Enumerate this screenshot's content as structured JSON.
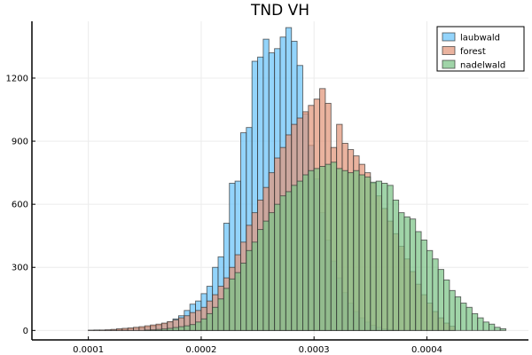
{
  "chart_data": {
    "type": "bar",
    "title": "TND VH",
    "xlabel": "",
    "ylabel": "",
    "xlim": [
      5e-05,
      0.00049
    ],
    "ylim": [
      -45,
      1470
    ],
    "x_ticks": [
      0.0001,
      0.0002,
      0.0003,
      0.0004
    ],
    "x_tick_labels": [
      "0.0001",
      "0.0002",
      "0.0003",
      "0.0004"
    ],
    "y_ticks": [
      0,
      300,
      600,
      900,
      1200
    ],
    "y_tick_labels": [
      "0",
      "300",
      "600",
      "900",
      "1200"
    ],
    "grid": true,
    "legend_position": "top-right",
    "bin_width": 5e-06,
    "series": [
      {
        "name": "laubwald",
        "color": "#6ac4fa",
        "x": [
          0.0001,
          0.000105,
          0.00011,
          0.000115,
          0.00012,
          0.000125,
          0.00013,
          0.000135,
          0.00014,
          0.000145,
          0.00015,
          0.000155,
          0.00016,
          0.000165,
          0.00017,
          0.000175,
          0.00018,
          0.000185,
          0.00019,
          0.000195,
          0.0002,
          0.000205,
          0.00021,
          0.000215,
          0.00022,
          0.000225,
          0.00023,
          0.000235,
          0.00024,
          0.000245,
          0.00025,
          0.000255,
          0.00026,
          0.000265,
          0.00027,
          0.000275,
          0.00028,
          0.000285,
          0.00029,
          0.000295,
          0.0003,
          0.000305,
          0.00031,
          0.000315,
          0.00032,
          0.000325,
          0.00033,
          0.000335,
          0.00034,
          0.000345,
          0.00035,
          0.000355,
          0.00036,
          0.000365,
          0.00037
        ],
        "values": [
          1,
          2,
          1,
          2,
          3,
          4,
          5,
          7,
          10,
          12,
          15,
          20,
          25,
          32,
          40,
          55,
          70,
          95,
          125,
          140,
          175,
          210,
          300,
          350,
          510,
          700,
          710,
          940,
          965,
          1280,
          1300,
          1385,
          1320,
          1340,
          1395,
          1440,
          1375,
          1260,
          1030,
          880,
          720,
          560,
          430,
          330,
          250,
          180,
          130,
          90,
          60,
          40,
          25,
          15,
          8,
          5,
          2
        ]
      },
      {
        "name": "forest",
        "color": "#e2967a",
        "x": [
          0.0001,
          0.000105,
          0.00011,
          0.000115,
          0.00012,
          0.000125,
          0.00013,
          0.000135,
          0.00014,
          0.000145,
          0.00015,
          0.000155,
          0.00016,
          0.000165,
          0.00017,
          0.000175,
          0.00018,
          0.000185,
          0.00019,
          0.000195,
          0.0002,
          0.000205,
          0.00021,
          0.000215,
          0.00022,
          0.000225,
          0.00023,
          0.000235,
          0.00024,
          0.000245,
          0.00025,
          0.000255,
          0.00026,
          0.000265,
          0.00027,
          0.000275,
          0.00028,
          0.000285,
          0.00029,
          0.000295,
          0.0003,
          0.000305,
          0.00031,
          0.000315,
          0.00032,
          0.000325,
          0.00033,
          0.000335,
          0.00034,
          0.000345,
          0.00035,
          0.000355,
          0.00036,
          0.000365,
          0.00037,
          0.000375,
          0.00038,
          0.000385,
          0.00039,
          0.000395,
          0.0004,
          0.000405,
          0.00041,
          0.000415,
          0.00042
        ],
        "values": [
          1,
          1,
          2,
          3,
          5,
          8,
          10,
          12,
          15,
          18,
          22,
          26,
          30,
          35,
          42,
          50,
          60,
          70,
          85,
          95,
          110,
          140,
          170,
          210,
          250,
          300,
          360,
          420,
          500,
          560,
          620,
          680,
          750,
          820,
          870,
          930,
          980,
          1010,
          1040,
          1070,
          1100,
          1150,
          1080,
          870,
          980,
          890,
          860,
          830,
          790,
          750,
          700,
          640,
          580,
          520,
          460,
          400,
          340,
          280,
          220,
          170,
          130,
          90,
          60,
          35,
          20
        ]
      },
      {
        "name": "nadelwald",
        "color": "#7cc487",
        "x": [
          0.00015,
          0.000155,
          0.00016,
          0.000165,
          0.00017,
          0.000175,
          0.00018,
          0.000185,
          0.00019,
          0.000195,
          0.0002,
          0.000205,
          0.00021,
          0.000215,
          0.00022,
          0.000225,
          0.00023,
          0.000235,
          0.00024,
          0.000245,
          0.00025,
          0.000255,
          0.00026,
          0.000265,
          0.00027,
          0.000275,
          0.00028,
          0.000285,
          0.00029,
          0.000295,
          0.0003,
          0.000305,
          0.00031,
          0.000315,
          0.00032,
          0.000325,
          0.00033,
          0.000335,
          0.00034,
          0.000345,
          0.00035,
          0.000355,
          0.00036,
          0.000365,
          0.00037,
          0.000375,
          0.00038,
          0.000385,
          0.00039,
          0.000395,
          0.0004,
          0.000405,
          0.00041,
          0.000415,
          0.00042,
          0.000425,
          0.00043,
          0.000435,
          0.00044,
          0.000445,
          0.00045,
          0.000455,
          0.00046,
          0.000465
        ],
        "values": [
          2,
          3,
          5,
          7,
          10,
          14,
          18,
          22,
          28,
          40,
          55,
          80,
          110,
          150,
          200,
          245,
          275,
          320,
          380,
          420,
          480,
          520,
          560,
          600,
          640,
          660,
          690,
          710,
          740,
          760,
          770,
          780,
          790,
          800,
          770,
          760,
          750,
          760,
          740,
          730,
          705,
          710,
          700,
          690,
          620,
          560,
          540,
          530,
          470,
          430,
          380,
          340,
          290,
          240,
          190,
          160,
          130,
          110,
          80,
          60,
          40,
          30,
          15,
          8
        ]
      }
    ]
  }
}
